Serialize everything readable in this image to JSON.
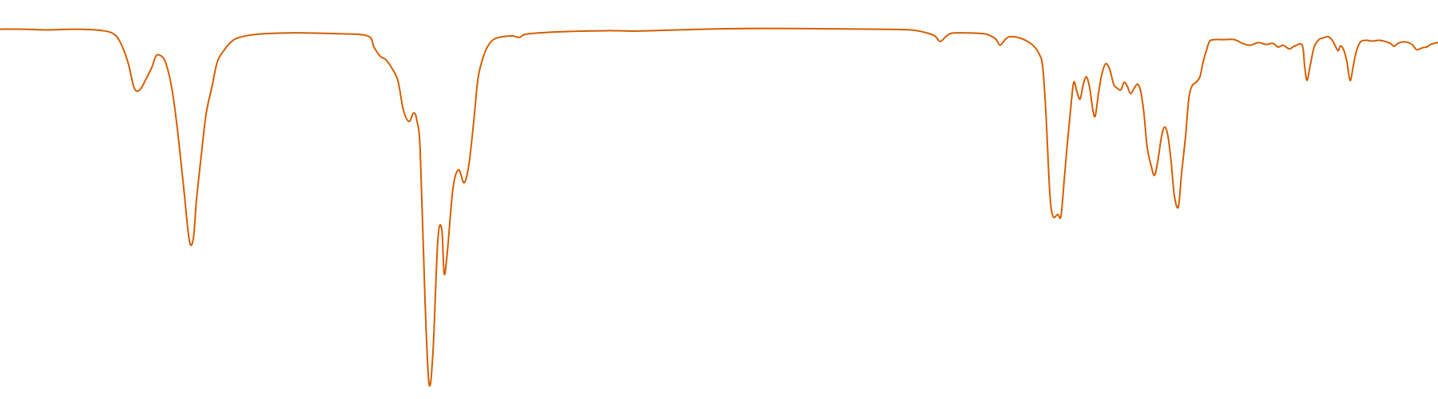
{
  "chart_data": {
    "type": "line",
    "title": "",
    "xlabel": "",
    "ylabel": "",
    "xlim": [
      0,
      1800
    ],
    "ylim": [
      0,
      100
    ],
    "grid": false,
    "legend": "none",
    "series": [
      {
        "color": "#d55e00",
        "points": [
          [
            0,
            95.8
          ],
          [
            30,
            95.8
          ],
          [
            60,
            95.6
          ],
          [
            90,
            95.8
          ],
          [
            120,
            95.6
          ],
          [
            140,
            94.8
          ],
          [
            150,
            92.5
          ],
          [
            160,
            87
          ],
          [
            168,
            80
          ],
          [
            175,
            79.5
          ],
          [
            183,
            82.5
          ],
          [
            190,
            85.5
          ],
          [
            195,
            88.5
          ],
          [
            200,
            88.8
          ],
          [
            207,
            87
          ],
          [
            215,
            80
          ],
          [
            222,
            69
          ],
          [
            230,
            53
          ],
          [
            237,
            39
          ],
          [
            242,
            39.5
          ],
          [
            246,
            50
          ],
          [
            252,
            62
          ],
          [
            258,
            73
          ],
          [
            265,
            80
          ],
          [
            272,
            87
          ],
          [
            280,
            90
          ],
          [
            290,
            92.5
          ],
          [
            300,
            93.6
          ],
          [
            320,
            94.4
          ],
          [
            360,
            94.8
          ],
          [
            420,
            94.6
          ],
          [
            460,
            94
          ],
          [
            468,
            91
          ],
          [
            476,
            88.5
          ],
          [
            483,
            87.6
          ],
          [
            490,
            85.5
          ],
          [
            498,
            82
          ],
          [
            505,
            74
          ],
          [
            512,
            71
          ],
          [
            518,
            73.3
          ],
          [
            522,
            71
          ],
          [
            526,
            63
          ],
          [
            532,
            23
          ],
          [
            537,
            0.5
          ],
          [
            542,
            9
          ],
          [
            548,
            39
          ],
          [
            553,
            42
          ],
          [
            556,
            30
          ],
          [
            560,
            36
          ],
          [
            567,
            53
          ],
          [
            574,
            58
          ],
          [
            581,
            54.5
          ],
          [
            587,
            59.5
          ],
          [
            593,
            71
          ],
          [
            598,
            82
          ],
          [
            603,
            87
          ],
          [
            610,
            91
          ],
          [
            620,
            93.3
          ],
          [
            640,
            94
          ],
          [
            650,
            93.6
          ],
          [
            660,
            94.5
          ],
          [
            700,
            95.1
          ],
          [
            760,
            95.4
          ],
          [
            800,
            95.3
          ],
          [
            880,
            95.8
          ],
          [
            960,
            96
          ],
          [
            1100,
            95.8
          ],
          [
            1140,
            95.6
          ],
          [
            1160,
            94.8
          ],
          [
            1170,
            94
          ],
          [
            1177,
            92.5
          ],
          [
            1185,
            94
          ],
          [
            1195,
            94.8
          ],
          [
            1230,
            94.6
          ],
          [
            1240,
            94
          ],
          [
            1247,
            93
          ],
          [
            1252,
            91.5
          ],
          [
            1259,
            93.2
          ],
          [
            1265,
            93.8
          ],
          [
            1277,
            93.4
          ],
          [
            1290,
            92
          ],
          [
            1297,
            90.5
          ],
          [
            1301,
            89
          ],
          [
            1305,
            86
          ],
          [
            1309,
            74
          ],
          [
            1314,
            52
          ],
          [
            1318,
            45.5
          ],
          [
            1324,
            46
          ],
          [
            1328,
            45.5
          ],
          [
            1332,
            55
          ],
          [
            1336,
            65
          ],
          [
            1340,
            74
          ],
          [
            1344,
            81.5
          ],
          [
            1348,
            79
          ],
          [
            1352,
            77
          ],
          [
            1356,
            81
          ],
          [
            1360,
            83
          ],
          [
            1364,
            80
          ],
          [
            1368,
            74
          ],
          [
            1371,
            72.5
          ],
          [
            1375,
            78.5
          ],
          [
            1379,
            83.5
          ],
          [
            1384,
            86.5
          ],
          [
            1389,
            85
          ],
          [
            1394,
            81
          ],
          [
            1398,
            80
          ],
          [
            1403,
            79.5
          ],
          [
            1407,
            81.5
          ],
          [
            1411,
            80.5
          ],
          [
            1415,
            78.5
          ],
          [
            1420,
            80
          ],
          [
            1424,
            81
          ],
          [
            1428,
            79
          ],
          [
            1432,
            73
          ],
          [
            1436,
            64
          ],
          [
            1441,
            59
          ],
          [
            1445,
            56.5
          ],
          [
            1449,
            60
          ],
          [
            1454,
            67
          ],
          [
            1458,
            69.5
          ],
          [
            1462,
            67
          ],
          [
            1466,
            60
          ],
          [
            1470,
            51
          ],
          [
            1475,
            48
          ],
          [
            1479,
            57
          ],
          [
            1484,
            67
          ],
          [
            1488,
            77
          ],
          [
            1492,
            80.5
          ],
          [
            1497,
            81.5
          ],
          [
            1502,
            83
          ],
          [
            1506,
            87
          ],
          [
            1510,
            90
          ],
          [
            1514,
            92.5
          ],
          [
            1520,
            93
          ],
          [
            1530,
            93
          ],
          [
            1545,
            93
          ],
          [
            1555,
            92
          ],
          [
            1565,
            91.5
          ],
          [
            1575,
            92.2
          ],
          [
            1585,
            91.7
          ],
          [
            1593,
            92
          ],
          [
            1600,
            91
          ],
          [
            1606,
            91.5
          ],
          [
            1614,
            90.5
          ],
          [
            1620,
            91.2
          ],
          [
            1630,
            91.5
          ],
          [
            1633,
            86
          ],
          [
            1636,
            82
          ],
          [
            1640,
            86
          ],
          [
            1645,
            91
          ],
          [
            1651,
            93
          ],
          [
            1657,
            93.5
          ],
          [
            1662,
            93.8
          ],
          [
            1667,
            93
          ],
          [
            1671,
            91.5
          ],
          [
            1675,
            90
          ],
          [
            1678,
            91.3
          ],
          [
            1682,
            90.2
          ],
          [
            1686,
            87
          ],
          [
            1690,
            82
          ],
          [
            1694,
            86
          ],
          [
            1698,
            90
          ],
          [
            1703,
            92.4
          ],
          [
            1710,
            92.8
          ],
          [
            1718,
            92.6
          ],
          [
            1726,
            92.8
          ],
          [
            1734,
            92.5
          ],
          [
            1741,
            91.9
          ],
          [
            1745,
            91.2
          ],
          [
            1750,
            92
          ],
          [
            1757,
            92.4
          ],
          [
            1763,
            92.2
          ],
          [
            1768,
            91.6
          ],
          [
            1773,
            90.3
          ],
          [
            1777,
            90.5
          ],
          [
            1782,
            90.9
          ],
          [
            1786,
            91
          ],
          [
            1790,
            91.6
          ],
          [
            1795,
            92
          ],
          [
            1800,
            92.2
          ]
        ]
      }
    ]
  }
}
